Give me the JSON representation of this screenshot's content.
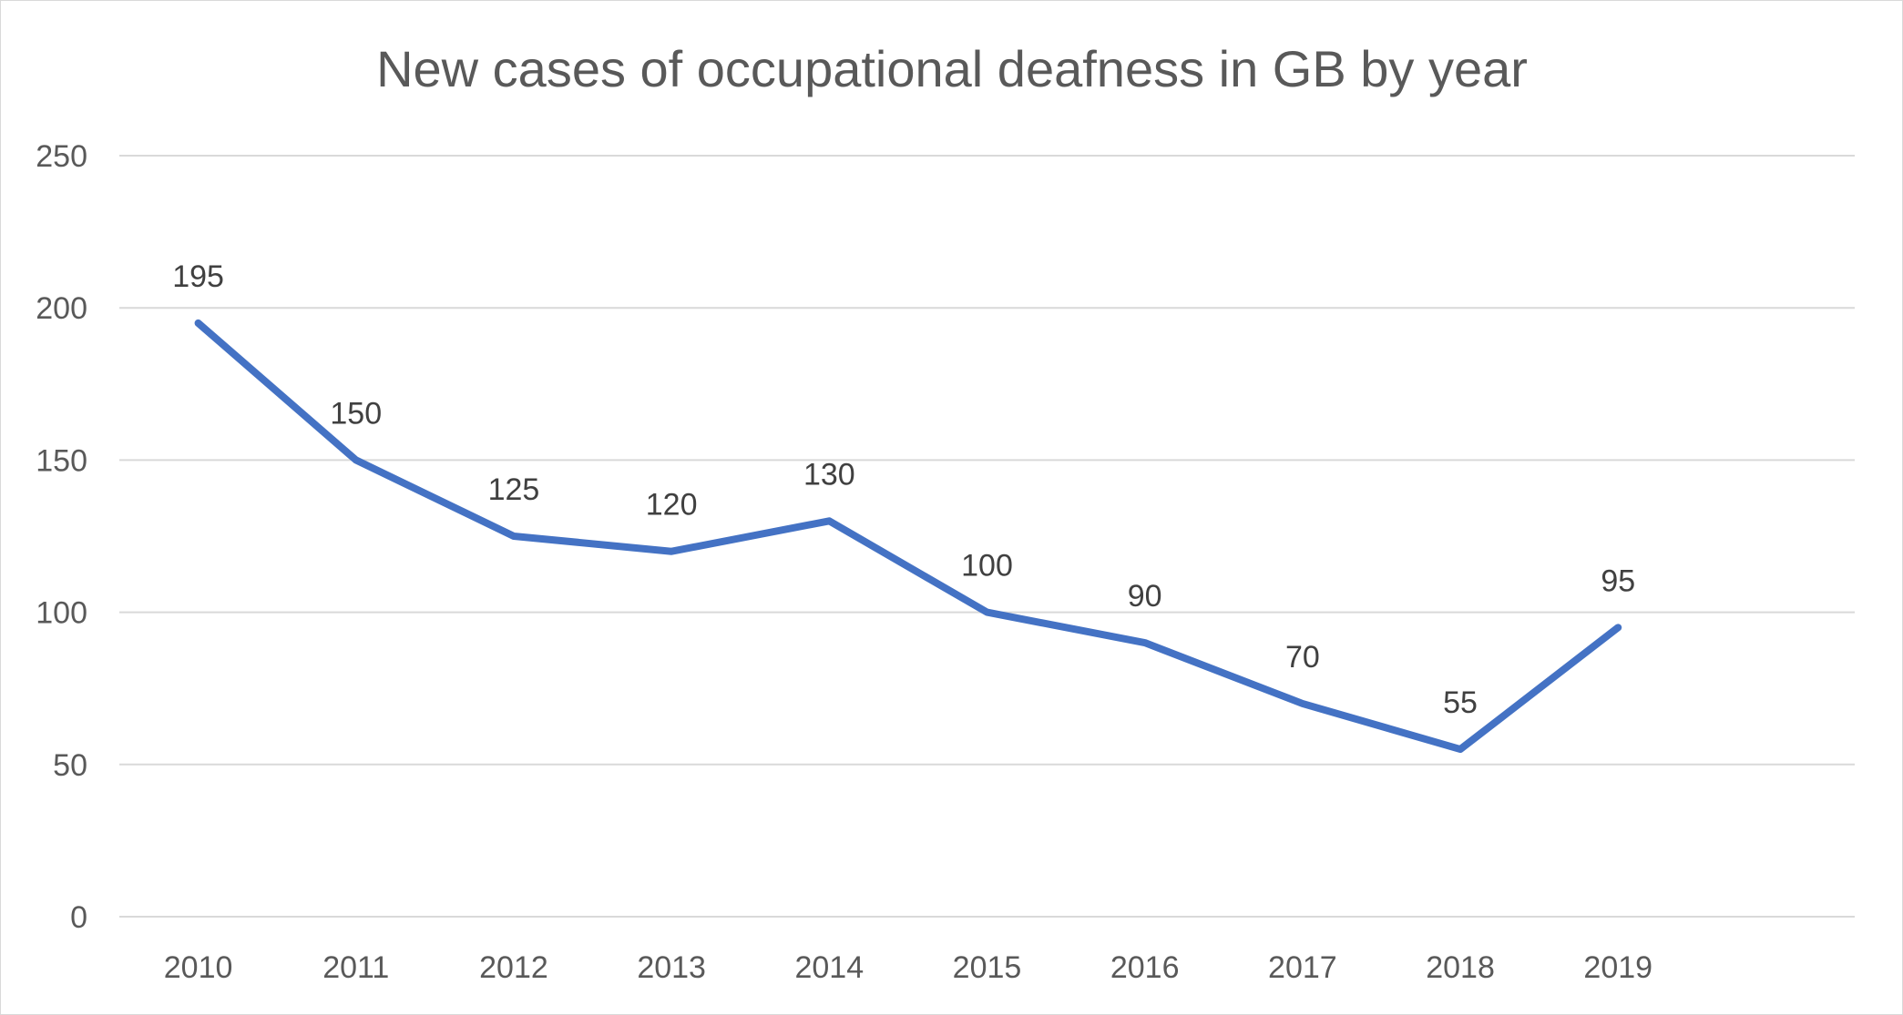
{
  "chart_data": {
    "type": "line",
    "title": "New cases of occupational deafness in GB by year",
    "xlabel": "",
    "ylabel": "",
    "categories": [
      "2010",
      "2011",
      "2012",
      "2013",
      "2014",
      "2015",
      "2016",
      "2017",
      "2018",
      "2019"
    ],
    "series": [
      {
        "values": [
          195,
          150,
          125,
          120,
          130,
          100,
          90,
          70,
          55,
          95
        ],
        "color": "#4472C4"
      }
    ],
    "ylim": [
      0,
      250
    ],
    "yticks": [
      0,
      50,
      100,
      150,
      200,
      250
    ],
    "grid": true,
    "legend": "none",
    "data_labels": true
  }
}
